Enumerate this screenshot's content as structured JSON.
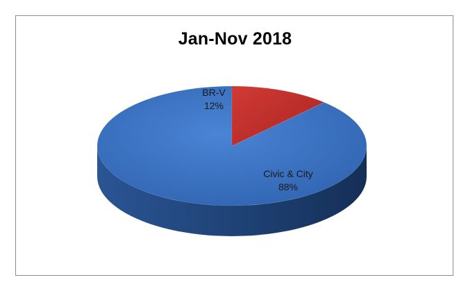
{
  "chart_data": {
    "type": "pie",
    "title": "Jan-Nov 2018",
    "three_d": true,
    "legend": "none",
    "slices": [
      {
        "label": "Civic & City",
        "value": 88,
        "display": "88%",
        "color": "#3d74c4"
      },
      {
        "label": "BR-V",
        "value": 12,
        "display": "12%",
        "color": "#c0302c"
      }
    ]
  }
}
